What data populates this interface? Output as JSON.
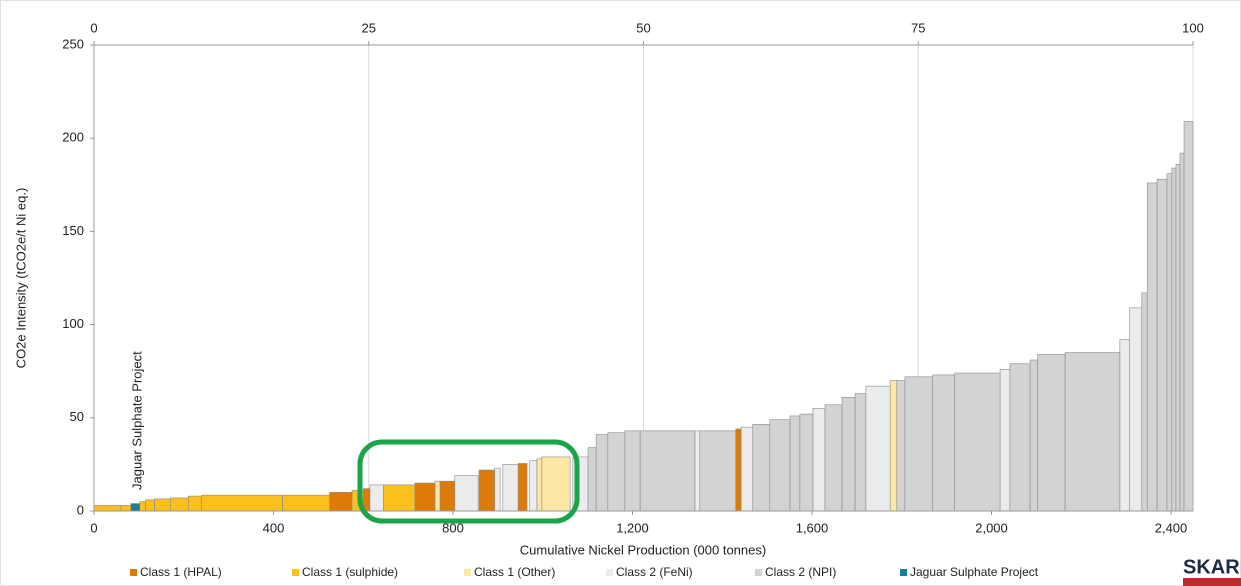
{
  "chart_data": {
    "type": "cost_curve",
    "y_label": "CO2e Intensity (tCO2e/t Ni eq.)",
    "x_label": "Cumulative Nickel Production (000 tonnes)",
    "annotation": "Jaguar Sulphate Project",
    "logo": "SKARN",
    "xlim": [
      0,
      2449
    ],
    "xticks": [
      0,
      400,
      800,
      {
        "value": 1200,
        "label": "1,200"
      },
      {
        "value": 1600,
        "label": "1,600"
      },
      {
        "value": 2000,
        "label": "2,000"
      },
      {
        "value": 2400,
        "label": "2,400"
      }
    ],
    "x2lim": [
      0,
      100
    ],
    "x2ticks": [
      0,
      25,
      50,
      75,
      100
    ],
    "ylim": [
      0,
      250
    ],
    "yticks": [
      0,
      50,
      100,
      150,
      200,
      250
    ],
    "grid": true,
    "series": [
      {
        "name": "Class 1 (HPAL)",
        "color": "#dd7b0a",
        "x0": [
          525,
          600,
          715,
          771,
          858,
          945,
          1430
        ],
        "x1": [
          575,
          615,
          771,
          804,
          893,
          965,
          1442
        ],
        "values": [
          10,
          12,
          15,
          16,
          22,
          25.5,
          44
        ]
      },
      {
        "name": "Class 1 (sulphide)",
        "color": "#fbbf1e",
        "x0": [
          0,
          60,
          102,
          115,
          135,
          170,
          210,
          240,
          420,
          575,
          645
        ],
        "x1": [
          60,
          82,
          115,
          135,
          170,
          210,
          240,
          420,
          525,
          600,
          715
        ],
        "values": [
          3,
          3,
          5,
          6,
          6.5,
          7,
          8,
          8.5,
          8.5,
          11,
          14
        ]
      },
      {
        "name": "Class 1 (Other)",
        "color": "#fde7a4",
        "x0": [
          760,
          987,
          998,
          1774
        ],
        "x1": [
          771,
          998,
          1061,
          1789
        ],
        "values": [
          16,
          28,
          29,
          70
        ]
      },
      {
        "name": "Class 2 (FeNi)",
        "color": "#ececec",
        "x0": [
          615,
          804,
          893,
          911,
          971,
          1067,
          1339,
          1442,
          1602,
          1720,
          2019,
          2286,
          2308
        ],
        "x1": [
          645,
          856,
          905,
          945,
          987,
          1101,
          1350,
          1468,
          1629,
          1774,
          2041,
          2308,
          2335
        ],
        "values": [
          14,
          19,
          23,
          25,
          27,
          29,
          43,
          45,
          55,
          67,
          76,
          92,
          109
        ]
      },
      {
        "name": "Class 2 (NPI)",
        "color": "#d3d3d3",
        "x0": [
          1101,
          1119,
          1145,
          1183,
          1217,
          1350,
          1468,
          1506,
          1551,
          1573,
          1629,
          1667,
          1696,
          1789,
          1807,
          1869,
          1918,
          2041,
          2086,
          2103,
          2164,
          2335,
          2347,
          2369,
          2391,
          2402,
          2411,
          2420,
          2429
        ],
        "x1": [
          1119,
          1145,
          1183,
          1217,
          1339,
          1430,
          1506,
          1551,
          1573,
          1602,
          1667,
          1696,
          1720,
          1807,
          1869,
          1918,
          2019,
          2086,
          2103,
          2164,
          2286,
          2347,
          2369,
          2391,
          2402,
          2411,
          2420,
          2429,
          2449
        ],
        "values": [
          34,
          41,
          42,
          43,
          43,
          43,
          46.5,
          49,
          51,
          52,
          57,
          61,
          63,
          70,
          72,
          73,
          74,
          79,
          81,
          84,
          85,
          117,
          176,
          178,
          181,
          184,
          186,
          192,
          209
        ]
      },
      {
        "name": "Jaguar Sulphate Project",
        "color": "#1b7f8f",
        "x0": [
          82
        ],
        "x1": [
          102
        ],
        "values": [
          4
        ]
      }
    ]
  }
}
